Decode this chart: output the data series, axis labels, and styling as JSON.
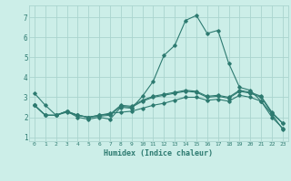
{
  "title": "",
  "xlabel": "Humidex (Indice chaleur)",
  "bg_color": "#cceee8",
  "grid_color": "#aad4ce",
  "line_color": "#2d7a70",
  "xlim": [
    -0.5,
    23.5
  ],
  "ylim": [
    0.8,
    7.6
  ],
  "xticks": [
    0,
    1,
    2,
    3,
    4,
    5,
    6,
    7,
    8,
    9,
    10,
    11,
    12,
    13,
    14,
    15,
    16,
    17,
    18,
    19,
    20,
    21,
    22,
    23
  ],
  "yticks": [
    1,
    2,
    3,
    4,
    5,
    6,
    7
  ],
  "line1_x": [
    0,
    1,
    2,
    3,
    4,
    5,
    6,
    7,
    8,
    9,
    10,
    11,
    12,
    13,
    14,
    15,
    16,
    17,
    18,
    19,
    20,
    21,
    22,
    23
  ],
  "line1_y": [
    3.2,
    2.6,
    2.1,
    2.3,
    2.0,
    1.9,
    2.0,
    1.9,
    2.5,
    2.45,
    3.05,
    3.8,
    5.1,
    5.6,
    6.85,
    7.1,
    6.2,
    6.35,
    4.7,
    3.5,
    3.35,
    2.8,
    2.15,
    1.4
  ],
  "line2_x": [
    0,
    1,
    2,
    3,
    4,
    5,
    6,
    7,
    8,
    9,
    10,
    11,
    12,
    13,
    14,
    15,
    16,
    17,
    18,
    19,
    20,
    21,
    22,
    23
  ],
  "line2_y": [
    2.6,
    2.1,
    2.1,
    2.25,
    2.1,
    2.0,
    2.05,
    2.1,
    2.55,
    2.5,
    2.8,
    3.0,
    3.1,
    3.2,
    3.3,
    3.25,
    3.0,
    3.05,
    2.95,
    3.3,
    3.2,
    3.0,
    2.2,
    1.7
  ],
  "line3_x": [
    0,
    1,
    2,
    3,
    4,
    5,
    6,
    7,
    8,
    9,
    10,
    11,
    12,
    13,
    14,
    15,
    16,
    17,
    18,
    19,
    20,
    21,
    22,
    23
  ],
  "line3_y": [
    2.6,
    2.1,
    2.1,
    2.3,
    2.1,
    2.0,
    2.1,
    2.15,
    2.6,
    2.55,
    2.85,
    3.05,
    3.15,
    3.25,
    3.35,
    3.3,
    3.05,
    3.1,
    3.0,
    3.35,
    3.25,
    3.05,
    2.25,
    1.7
  ],
  "line4_x": [
    0,
    1,
    2,
    3,
    4,
    5,
    6,
    7,
    8,
    9,
    10,
    11,
    12,
    13,
    14,
    15,
    16,
    17,
    18,
    19,
    20,
    21,
    22,
    23
  ],
  "line4_y": [
    2.6,
    2.1,
    2.1,
    2.3,
    2.1,
    2.0,
    2.1,
    2.2,
    2.25,
    2.3,
    2.45,
    2.6,
    2.7,
    2.85,
    3.0,
    3.0,
    2.85,
    2.9,
    2.8,
    3.1,
    3.0,
    2.8,
    2.0,
    1.45
  ]
}
